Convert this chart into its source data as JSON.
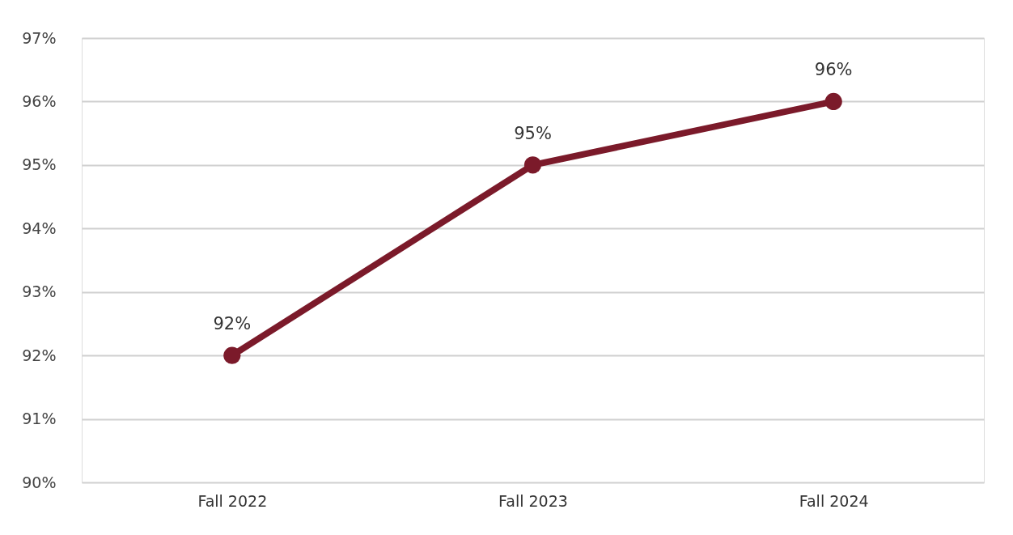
{
  "chart_data": {
    "type": "line",
    "categories": [
      "Fall 2022",
      "Fall 2023",
      "Fall 2024"
    ],
    "series": [
      {
        "color": "#7b1a2a",
        "values": [
          92,
          95,
          96
        ],
        "value_labels": [
          "92%",
          "95%",
          "96%"
        ]
      }
    ],
    "ylim": [
      90,
      97
    ],
    "yticks": [
      {
        "value": 90,
        "label": "90%"
      },
      {
        "value": 91,
        "label": "91%"
      },
      {
        "value": 92,
        "label": "92%"
      },
      {
        "value": 93,
        "label": "93%"
      },
      {
        "value": 94,
        "label": "94%"
      },
      {
        "value": 95,
        "label": "95%"
      },
      {
        "value": 96,
        "label": "96%"
      },
      {
        "value": 97,
        "label": "97%"
      }
    ],
    "grid": "y",
    "marker": "circle",
    "line_style": "solid"
  }
}
